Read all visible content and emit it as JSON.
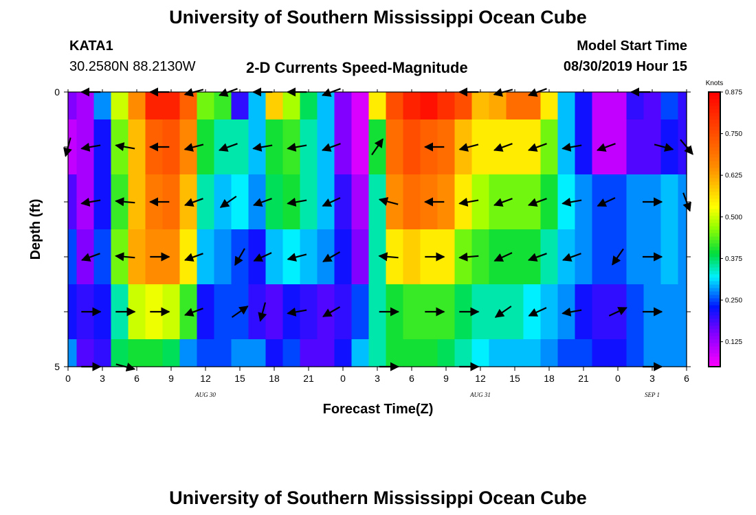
{
  "page": {
    "title_top": "University of Southern Mississippi Ocean Cube",
    "title_bottom": "University of Southern Mississippi Ocean Cube",
    "station": "KATA1",
    "location": "30.2580N 88.2130W",
    "plot_title": "2-D Currents Speed-Magnitude",
    "model_start_label": "Model Start Time",
    "model_start_value": "08/30/2019 Hour 15"
  },
  "chart_data": {
    "type": "heatmap",
    "title": "2-D Currents Speed-Magnitude",
    "xlabel": "Forecast Time(Z)",
    "ylabel": "Depth (ft)",
    "x_hours": [
      0,
      1.5,
      3,
      4.5,
      6,
      7.5,
      9,
      10.5,
      12,
      13.5,
      15,
      16.5,
      18,
      19.5,
      21,
      22.5,
      24,
      25.5,
      27,
      28.5,
      30,
      31.5,
      33,
      34.5,
      36,
      37.5,
      39,
      40.5,
      42,
      43.5,
      45,
      46.5,
      48,
      49.5,
      51,
      52.5,
      54
    ],
    "xlim": [
      0,
      54
    ],
    "x_tick_labels": [
      "0",
      "3",
      "6",
      "9",
      "12",
      "15",
      "18",
      "21",
      "0",
      "3",
      "6",
      "9",
      "12",
      "15",
      "18",
      "21",
      "0",
      "3",
      "6"
    ],
    "date_labels": [
      {
        "text": "AUG 30",
        "hour": 12
      },
      {
        "text": "AUG 31",
        "hour": 36
      },
      {
        "text": "SEP 1",
        "hour": 51
      }
    ],
    "depth_levels": [
      0,
      1,
      2,
      3,
      4,
      5
    ],
    "ylim": [
      0,
      5
    ],
    "y_tick_labels": [
      "0",
      "5"
    ],
    "speed": [
      [
        0.15,
        0.12,
        0.28,
        0.5,
        0.65,
        0.82,
        0.82,
        0.72,
        0.45,
        0.42,
        0.2,
        0.3,
        0.58,
        0.48,
        0.38,
        0.3,
        0.15,
        0.08,
        0.55,
        0.75,
        0.82,
        0.85,
        0.8,
        0.75,
        0.6,
        0.62,
        0.7,
        0.7,
        0.55,
        0.3,
        0.22,
        0.1,
        0.1,
        0.2,
        0.18,
        0.25,
        0.2
      ],
      [
        0.1,
        0.12,
        0.22,
        0.45,
        0.6,
        0.72,
        0.74,
        0.66,
        0.4,
        0.35,
        0.35,
        0.3,
        0.4,
        0.42,
        0.35,
        0.3,
        0.15,
        0.08,
        0.4,
        0.7,
        0.75,
        0.72,
        0.7,
        0.6,
        0.55,
        0.55,
        0.55,
        0.55,
        0.45,
        0.3,
        0.22,
        0.1,
        0.1,
        0.18,
        0.18,
        0.22,
        0.2
      ],
      [
        0.18,
        0.12,
        0.22,
        0.42,
        0.6,
        0.68,
        0.7,
        0.6,
        0.35,
        0.3,
        0.32,
        0.28,
        0.38,
        0.4,
        0.35,
        0.3,
        0.2,
        0.12,
        0.35,
        0.65,
        0.7,
        0.68,
        0.65,
        0.55,
        0.48,
        0.45,
        0.45,
        0.45,
        0.4,
        0.32,
        0.28,
        0.25,
        0.25,
        0.28,
        0.28,
        0.3,
        0.28
      ],
      [
        0.25,
        0.15,
        0.25,
        0.45,
        0.62,
        0.65,
        0.65,
        0.55,
        0.3,
        0.28,
        0.25,
        0.22,
        0.3,
        0.32,
        0.3,
        0.28,
        0.22,
        0.15,
        0.35,
        0.55,
        0.58,
        0.55,
        0.55,
        0.45,
        0.42,
        0.4,
        0.4,
        0.4,
        0.35,
        0.3,
        0.28,
        0.25,
        0.25,
        0.28,
        0.28,
        0.3,
        0.28
      ],
      [
        0.22,
        0.2,
        0.22,
        0.35,
        0.5,
        0.52,
        0.5,
        0.42,
        0.22,
        0.25,
        0.25,
        0.2,
        0.18,
        0.22,
        0.2,
        0.18,
        0.2,
        0.25,
        0.35,
        0.4,
        0.42,
        0.42,
        0.42,
        0.38,
        0.35,
        0.35,
        0.35,
        0.32,
        0.3,
        0.28,
        0.22,
        0.2,
        0.2,
        0.25,
        0.28,
        0.28,
        0.28
      ],
      [
        0.28,
        0.18,
        0.2,
        0.38,
        0.4,
        0.4,
        0.38,
        0.28,
        0.25,
        0.25,
        0.28,
        0.28,
        0.22,
        0.25,
        0.18,
        0.18,
        0.22,
        0.3,
        0.35,
        0.4,
        0.4,
        0.4,
        0.38,
        0.35,
        0.32,
        0.3,
        0.3,
        0.3,
        0.28,
        0.25,
        0.25,
        0.22,
        0.22,
        0.25,
        0.28,
        0.28,
        0.28
      ]
    ],
    "colorbar": {
      "unit": "Knots",
      "range": [
        0.05,
        0.875
      ],
      "ticks": [
        0.875,
        0.75,
        0.625,
        0.5,
        0.375,
        0.25,
        0.125
      ],
      "tick_labels": [
        "0.875",
        "0.750",
        "0.625",
        "0.500",
        "0.375",
        "0.250",
        "0.125"
      ]
    },
    "vectors": [
      {
        "depth": 0,
        "hour": 2,
        "dir": 180
      },
      {
        "depth": 0,
        "hour": 8,
        "dir": 180
      },
      {
        "depth": 0,
        "hour": 11,
        "dir": 195
      },
      {
        "depth": 0,
        "hour": 14,
        "dir": 200
      },
      {
        "depth": 0,
        "hour": 17,
        "dir": 180
      },
      {
        "depth": 0,
        "hour": 20,
        "dir": 180
      },
      {
        "depth": 0,
        "hour": 23,
        "dir": 200
      },
      {
        "depth": 0,
        "hour": 35,
        "dir": 180
      },
      {
        "depth": 0,
        "hour": 38,
        "dir": 195
      },
      {
        "depth": 0,
        "hour": 41,
        "dir": 200
      },
      {
        "depth": 0,
        "hour": 50,
        "dir": 180
      },
      {
        "depth": 1,
        "hour": 0,
        "dir": 255
      },
      {
        "depth": 1,
        "hour": 2,
        "dir": 190
      },
      {
        "depth": 1,
        "hour": 5,
        "dir": 170
      },
      {
        "depth": 1,
        "hour": 8,
        "dir": 180
      },
      {
        "depth": 1,
        "hour": 11,
        "dir": 195
      },
      {
        "depth": 1,
        "hour": 14,
        "dir": 200
      },
      {
        "depth": 1,
        "hour": 17,
        "dir": 190
      },
      {
        "depth": 1,
        "hour": 20,
        "dir": 190
      },
      {
        "depth": 1,
        "hour": 23,
        "dir": 200
      },
      {
        "depth": 1,
        "hour": 27,
        "dir": 55
      },
      {
        "depth": 1,
        "hour": 32,
        "dir": 180
      },
      {
        "depth": 1,
        "hour": 35,
        "dir": 195
      },
      {
        "depth": 1,
        "hour": 38,
        "dir": 200
      },
      {
        "depth": 1,
        "hour": 41,
        "dir": 200
      },
      {
        "depth": 1,
        "hour": 44,
        "dir": 190
      },
      {
        "depth": 1,
        "hour": 47,
        "dir": 200
      },
      {
        "depth": 1,
        "hour": 52,
        "dir": 345
      },
      {
        "depth": 1,
        "hour": 54,
        "dir": 310
      },
      {
        "depth": 2,
        "hour": 2,
        "dir": 190
      },
      {
        "depth": 2,
        "hour": 5,
        "dir": 175
      },
      {
        "depth": 2,
        "hour": 8,
        "dir": 180
      },
      {
        "depth": 2,
        "hour": 11,
        "dir": 200
      },
      {
        "depth": 2,
        "hour": 14,
        "dir": 215
      },
      {
        "depth": 2,
        "hour": 17,
        "dir": 200
      },
      {
        "depth": 2,
        "hour": 20,
        "dir": 190
      },
      {
        "depth": 2,
        "hour": 23,
        "dir": 205
      },
      {
        "depth": 2,
        "hour": 28,
        "dir": 165
      },
      {
        "depth": 2,
        "hour": 32,
        "dir": 180
      },
      {
        "depth": 2,
        "hour": 35,
        "dir": 190
      },
      {
        "depth": 2,
        "hour": 38,
        "dir": 200
      },
      {
        "depth": 2,
        "hour": 41,
        "dir": 200
      },
      {
        "depth": 2,
        "hour": 44,
        "dir": 190
      },
      {
        "depth": 2,
        "hour": 47,
        "dir": 205
      },
      {
        "depth": 2,
        "hour": 51,
        "dir": 0
      },
      {
        "depth": 2,
        "hour": 54,
        "dir": 290
      },
      {
        "depth": 3,
        "hour": 2,
        "dir": 200
      },
      {
        "depth": 3,
        "hour": 5,
        "dir": 175
      },
      {
        "depth": 3,
        "hour": 8,
        "dir": 0
      },
      {
        "depth": 3,
        "hour": 11,
        "dir": 200
      },
      {
        "depth": 3,
        "hour": 15,
        "dir": 240
      },
      {
        "depth": 3,
        "hour": 17,
        "dir": 205
      },
      {
        "depth": 3,
        "hour": 20,
        "dir": 195
      },
      {
        "depth": 3,
        "hour": 23,
        "dir": 210
      },
      {
        "depth": 3,
        "hour": 28,
        "dir": 175
      },
      {
        "depth": 3,
        "hour": 32,
        "dir": 0
      },
      {
        "depth": 3,
        "hour": 35,
        "dir": 185
      },
      {
        "depth": 3,
        "hour": 38,
        "dir": 205
      },
      {
        "depth": 3,
        "hour": 41,
        "dir": 200
      },
      {
        "depth": 3,
        "hour": 44,
        "dir": 200
      },
      {
        "depth": 3,
        "hour": 48,
        "dir": 235
      },
      {
        "depth": 3,
        "hour": 51,
        "dir": 0
      },
      {
        "depth": 4,
        "hour": 2,
        "dir": 0
      },
      {
        "depth": 4,
        "hour": 5,
        "dir": 0
      },
      {
        "depth": 4,
        "hour": 8,
        "dir": 0
      },
      {
        "depth": 4,
        "hour": 11,
        "dir": 200
      },
      {
        "depth": 4,
        "hour": 15,
        "dir": 35
      },
      {
        "depth": 4,
        "hour": 17,
        "dir": 255
      },
      {
        "depth": 4,
        "hour": 20,
        "dir": 190
      },
      {
        "depth": 4,
        "hour": 23,
        "dir": 210
      },
      {
        "depth": 4,
        "hour": 28,
        "dir": 0
      },
      {
        "depth": 4,
        "hour": 32,
        "dir": 0
      },
      {
        "depth": 4,
        "hour": 35,
        "dir": 0
      },
      {
        "depth": 4,
        "hour": 38,
        "dir": 215
      },
      {
        "depth": 4,
        "hour": 41,
        "dir": 205
      },
      {
        "depth": 4,
        "hour": 44,
        "dir": 190
      },
      {
        "depth": 4,
        "hour": 48,
        "dir": 25
      },
      {
        "depth": 4,
        "hour": 51,
        "dir": 0
      },
      {
        "depth": 5,
        "hour": 2,
        "dir": 0
      },
      {
        "depth": 5,
        "hour": 5,
        "dir": 345
      },
      {
        "depth": 5,
        "hour": 28,
        "dir": 0
      },
      {
        "depth": 5,
        "hour": 35,
        "dir": 0
      },
      {
        "depth": 5,
        "hour": 51,
        "dir": 0
      }
    ]
  }
}
